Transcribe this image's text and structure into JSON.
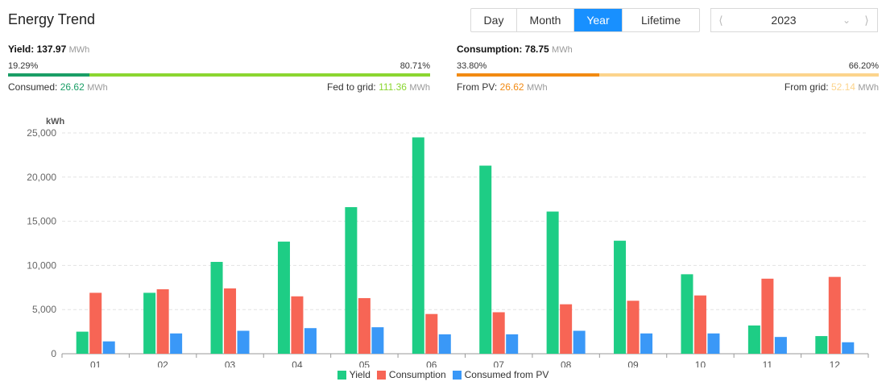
{
  "header": {
    "title": "Energy Trend"
  },
  "tabs": [
    {
      "label": "Day",
      "active": false
    },
    {
      "label": "Month",
      "active": false
    },
    {
      "label": "Year",
      "active": true
    },
    {
      "label": "Lifetime",
      "active": false
    }
  ],
  "year_picker": {
    "value": "2023",
    "prev_icon": "chevron-left-icon",
    "dropdown_icon": "chevron-down-icon",
    "next_icon": "chevron-right-icon"
  },
  "yield": {
    "label": "Yield:",
    "value": "137.97",
    "unit": "MWh",
    "left_pct": "19.29%",
    "right_pct": "80.71%",
    "left_fraction": 0.1929,
    "left_color": "#1a9e66",
    "right_color": "#8bd630",
    "consumed_label": "Consumed:",
    "consumed_value": "26.62",
    "consumed_unit": "MWh",
    "consumed_color": "#1a9e66",
    "fed_label": "Fed to grid:",
    "fed_value": "111.36",
    "fed_unit": "MWh",
    "fed_color": "#8bd630"
  },
  "consumption": {
    "label": "Consumption:",
    "value": "78.75",
    "unit": "MWh",
    "left_pct": "33.80%",
    "right_pct": "66.20%",
    "left_fraction": 0.338,
    "left_color": "#f28a12",
    "right_color": "#fcd48c",
    "pv_label": "From PV:",
    "pv_value": "26.62",
    "pv_unit": "MWh",
    "pv_color": "#f28a12",
    "grid_label": "From grid:",
    "grid_value": "52.14",
    "grid_unit": "MWh",
    "grid_color": "#fcd48c"
  },
  "chart_data": {
    "type": "bar",
    "ylabel": "kWh",
    "ylim": [
      0,
      25000
    ],
    "yticks": [
      "0",
      "5,000",
      "10,000",
      "15,000",
      "20,000",
      "25,000"
    ],
    "ytick_values": [
      0,
      5000,
      10000,
      15000,
      20000,
      25000
    ],
    "grid": true,
    "legend_placement": "bottom-center",
    "categories": [
      "01",
      "02",
      "03",
      "04",
      "05",
      "06",
      "07",
      "08",
      "09",
      "10",
      "11",
      "12"
    ],
    "series": [
      {
        "name": "Yield",
        "color": "#1ecd85",
        "values": [
          2500,
          6900,
          10400,
          12700,
          16600,
          24500,
          21300,
          16100,
          12800,
          9000,
          3200,
          2000
        ]
      },
      {
        "name": "Consumption",
        "color": "#f76555",
        "values": [
          6900,
          7300,
          7400,
          6500,
          6300,
          4500,
          4700,
          5600,
          6000,
          6600,
          8500,
          8700
        ]
      },
      {
        "name": "Consumed from PV",
        "color": "#3a98f7",
        "values": [
          1400,
          2300,
          2600,
          2900,
          3000,
          2200,
          2200,
          2600,
          2300,
          2300,
          1900,
          1300
        ]
      }
    ]
  }
}
